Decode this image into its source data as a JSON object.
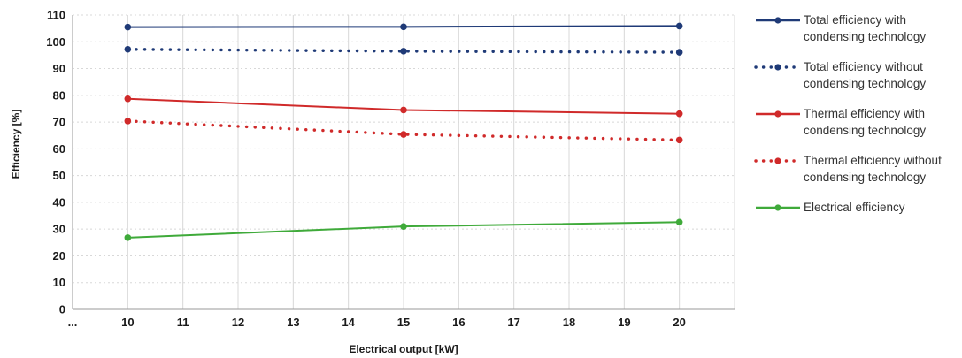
{
  "chart_data": {
    "type": "line",
    "title": "",
    "xlabel": "Electrical output [kW]",
    "ylabel": "Efficiency [%]",
    "x_ticks": [
      "...",
      "10",
      "11",
      "12",
      "13",
      "14",
      "15",
      "16",
      "17",
      "18",
      "19",
      "20"
    ],
    "y_ticks": [
      "0",
      "10",
      "20",
      "30",
      "40",
      "50",
      "60",
      "70",
      "80",
      "90",
      "100",
      "110"
    ],
    "xlim": [
      9,
      21
    ],
    "ylim": [
      0,
      110
    ],
    "grid": true,
    "legend_position": "right",
    "series": [
      {
        "name": "Total efficiency with condensing technology",
        "x": [
          10,
          15,
          20
        ],
        "y": [
          105.5,
          105.6,
          105.9
        ],
        "color": "#1f3a77",
        "style": "solid"
      },
      {
        "name": "Total efficiency without condensing technology",
        "x": [
          10,
          15,
          20
        ],
        "y": [
          97.2,
          96.5,
          96.1
        ],
        "color": "#1f3a77",
        "style": "dotted"
      },
      {
        "name": "Thermal efficiency with condensing technology",
        "x": [
          10,
          15,
          20
        ],
        "y": [
          78.7,
          74.5,
          73.1
        ],
        "color": "#d02a2a",
        "style": "solid"
      },
      {
        "name": "Thermal efficiency without condensing technology",
        "x": [
          10,
          15,
          20
        ],
        "y": [
          70.4,
          65.4,
          63.3
        ],
        "color": "#d02a2a",
        "style": "dotted"
      },
      {
        "name": "Electrical efficiency",
        "x": [
          10,
          15,
          20
        ],
        "y": [
          26.8,
          31.0,
          32.6
        ],
        "color": "#3faa3a",
        "style": "solid"
      }
    ]
  },
  "legend": [
    {
      "line1": "Total efficiency with",
      "line2": "condensing technology"
    },
    {
      "line1": "Total efficiency without",
      "line2": "condensing technology"
    },
    {
      "line1": "Thermal efficiency with",
      "line2": "condensing technology"
    },
    {
      "line1": "Thermal efficiency without",
      "line2": "condensing technology"
    },
    {
      "line1": "Electrical efficiency",
      "line2": ""
    }
  ]
}
